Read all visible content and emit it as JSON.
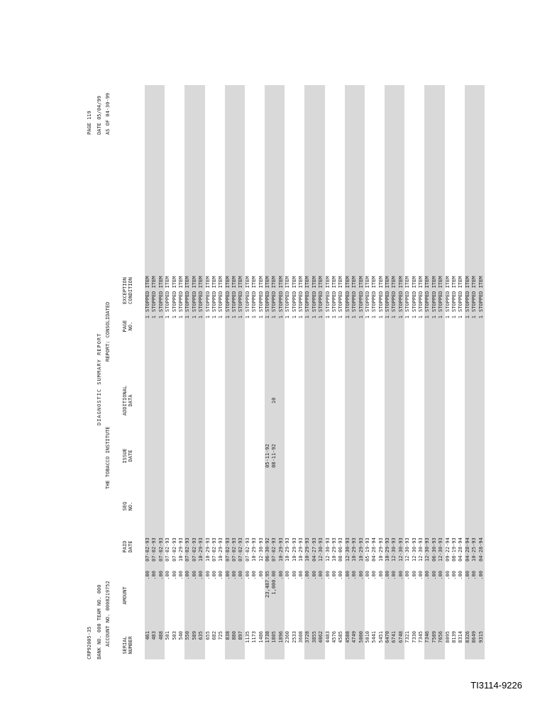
{
  "header": {
    "report_id": "CRP92005-35",
    "bank_line": "BANK NO.  000 TEAM NO.  000",
    "account_line": "ACCOUNT NO. 0008219752",
    "title": "DIAGNOSTIC  SUMMARY  REPORT",
    "client": "THE TOBACCO INSTITUTE",
    "report_type": "REPORT: CONSOLIDATED",
    "page": "PAGE    119",
    "date": "DATE  05/04/99",
    "as_of": "AS OF 04-30-99"
  },
  "table": {
    "columns": [
      "SERIAL NUMBER",
      "AMOUNT",
      "PAID DATE",
      "SEQ NO.",
      "ISSUE DATE",
      "ADDITIONAL DATA",
      "PAGE NO.",
      "EXCEPTION CONDITION"
    ],
    "rows": [
      [
        "461",
        ".00",
        "07-02-93",
        "",
        "",
        "",
        "1",
        "STOPPED ITEM"
      ],
      [
        "483",
        ".00",
        "07-02-93",
        "",
        "",
        "",
        "1",
        "STOPPED ITEM"
      ],
      [
        "488",
        ".00",
        "07-02-93",
        "",
        "",
        "",
        "1",
        "STOPPED ITEM"
      ],
      [
        "501",
        ".00",
        "07-02-93",
        "",
        "",
        "",
        "1",
        "STOPPED ITEM"
      ],
      [
        "503",
        ".00",
        "07-02-93",
        "",
        "",
        "",
        "1",
        "STOPPED ITEM"
      ],
      [
        "540",
        ".00",
        "10-29-93",
        "",
        "",
        "",
        "1",
        "STOPPED ITEM"
      ],
      [
        "550",
        ".00",
        "07-02-93",
        "",
        "",
        "",
        "1",
        "STOPPED ITEM"
      ],
      [
        "589",
        ".00",
        "07-02-93",
        "",
        "",
        "",
        "1",
        "STOPPED ITEM"
      ],
      [
        "635",
        ".00",
        "10-29-93",
        "",
        "",
        "",
        "1",
        "STOPPED ITEM"
      ],
      [
        "655",
        ".00",
        "10-29-93",
        "",
        "",
        "",
        "1",
        "STOPPED ITEM"
      ],
      [
        "682",
        ".00",
        "07-02-93",
        "",
        "",
        "",
        "1",
        "STOPPED ITEM"
      ],
      [
        "725",
        ".00",
        "10-29-93",
        "",
        "",
        "",
        "1",
        "STOPPED ITEM"
      ],
      [
        "838",
        ".00",
        "07-02-93",
        "",
        "",
        "",
        "1",
        "STOPPED ITEM"
      ],
      [
        "880",
        ".00",
        "07-02-93",
        "",
        "",
        "",
        "1",
        "STOPPED ITEM"
      ],
      [
        "897",
        ".00",
        "07-02-93",
        "",
        "",
        "",
        "1",
        "STOPPED ITEM"
      ],
      [
        "1135",
        ".00",
        "07-02-93",
        "",
        "",
        "",
        "1",
        "STOPPED ITEM"
      ],
      [
        "1173",
        ".00",
        "10-29-93",
        "",
        "",
        "",
        "1",
        "STOPPED ITEM"
      ],
      [
        "1486",
        ".00",
        "12-30-93",
        "",
        "",
        "",
        "1",
        "STOPPED ITEM"
      ],
      [
        "1738",
        "23,487.95",
        "06-30-92",
        "",
        "05-11-92",
        "",
        "1",
        "STOPPED ITEM"
      ],
      [
        "1805",
        "1,000.00",
        "07-02-93",
        "",
        "08-11-92",
        "10",
        "1",
        "STOPPED ITEM"
      ],
      [
        "1896",
        ".00",
        "10-29-93",
        "",
        "",
        "",
        "1",
        "STOPPED ITEM"
      ],
      [
        "2360",
        ".00",
        "10-29-93",
        "",
        "",
        "",
        "1",
        "STOPPED ITEM"
      ],
      [
        "2533",
        ".00",
        "10-29-93",
        "",
        "",
        "",
        "1",
        "STOPPED ITEM"
      ],
      [
        "3608",
        ".00",
        "10-29-93",
        "",
        "",
        "",
        "1",
        "STOPPED ITEM"
      ],
      [
        "3728",
        ".00",
        "10-29-93",
        "",
        "",
        "",
        "1",
        "STOPPED ITEM"
      ],
      [
        "3855",
        ".00",
        "04-27-93",
        "",
        "",
        "",
        "1",
        "STOPPED ITEM"
      ],
      [
        "4062",
        ".00",
        "12-30-93",
        "",
        "",
        "",
        "1",
        "STOPPED ITEM"
      ],
      [
        "4483",
        ".00",
        "12-30-93",
        "",
        "",
        "",
        "1",
        "STOPPED ITEM"
      ],
      [
        "4576",
        ".00",
        "10-29-93",
        "",
        "",
        "",
        "1",
        "STOPPED ITEM"
      ],
      [
        "4585",
        ".00",
        "08-06-93",
        "",
        "",
        "",
        "1",
        "STOPPED ITEM"
      ],
      [
        "4588",
        ".00",
        "12-30-93",
        "",
        "",
        "",
        "1",
        "STOPPED ITEM"
      ],
      [
        "4749",
        ".00",
        "10-29-93",
        "",
        "",
        "",
        "1",
        "STOPPED ITEM"
      ],
      [
        "5000",
        ".00",
        "10-29-93",
        "",
        "",
        "",
        "1",
        "STOPPED ITEM"
      ],
      [
        "5010",
        ".00",
        "05-19-93",
        "",
        "",
        "",
        "1",
        "STOPPED ITEM"
      ],
      [
        "5441",
        ".00",
        "04-28-94",
        "",
        "",
        "",
        "1",
        "STOPPED ITEM"
      ],
      [
        "5451",
        ".00",
        "10-29-93",
        "",
        "",
        "",
        "1",
        "STOPPED ITEM"
      ],
      [
        "6470",
        ".00",
        "10-29-93",
        "",
        "",
        "",
        "1",
        "STOPPED ITEM"
      ],
      [
        "6741",
        ".00",
        "12-30-93",
        "",
        "",
        "",
        "1",
        "STOPPED ITEM"
      ],
      [
        "6748",
        ".00",
        "12-30-93",
        "",
        "",
        "",
        "1",
        "STOPPED ITEM"
      ],
      [
        "7321",
        ".00",
        "12-30-93",
        "",
        "",
        "",
        "1",
        "STOPPED ITEM"
      ],
      [
        "7330",
        ".00",
        "12-30-93",
        "",
        "",
        "",
        "1",
        "STOPPED ITEM"
      ],
      [
        "7345",
        ".00",
        "12-30-93",
        "",
        "",
        "",
        "1",
        "STOPPED ITEM"
      ],
      [
        "7346",
        ".00",
        "12-30-93",
        "",
        "",
        "",
        "1",
        "STOPPED ITEM"
      ],
      [
        "7589",
        ".00",
        "06-30-93",
        "",
        "",
        "",
        "1",
        "STOPPED ITEM"
      ],
      [
        "7656",
        ".00",
        "12-30-93",
        "",
        "",
        "",
        "1",
        "STOPPED ITEM"
      ],
      [
        "8095",
        ".00",
        "09-22-94",
        "",
        "",
        "",
        "1",
        "STOPPED ITEM"
      ],
      [
        "8139",
        ".00",
        "08-19-93",
        "",
        "",
        "",
        "1",
        "STOPPED ITEM"
      ],
      [
        "8314",
        ".00",
        "04-28-94",
        "",
        "",
        "",
        "1",
        "STOPPED ITEM"
      ],
      [
        "8326",
        ".00",
        "04-28-94",
        "",
        "",
        "",
        "1",
        "STOPPED ITEM"
      ],
      [
        "8649",
        ".00",
        "10-25-93",
        "",
        "",
        "",
        "1",
        "STOPPED ITEM"
      ],
      [
        "9315",
        ".00",
        "04-28-94",
        "",
        "",
        "",
        "1",
        "STOPPED ITEM"
      ]
    ]
  },
  "footer": {
    "doc_id": "TI3114-9226"
  }
}
